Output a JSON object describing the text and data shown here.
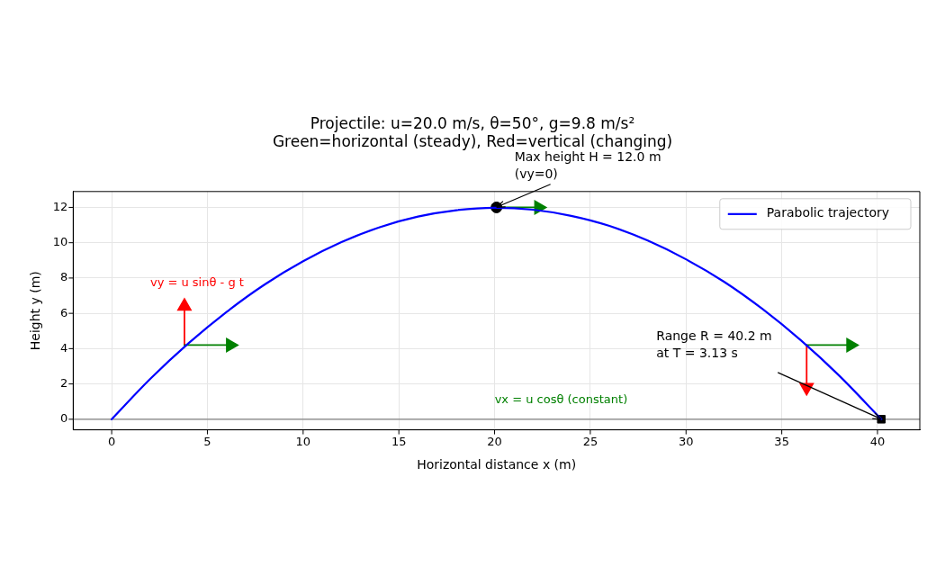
{
  "chart_data": {
    "type": "line",
    "title": "Projectile: u=20.0 m/s, θ=50°, g=9.8 m/s²\nGreen=horizontal (steady), Red=vertical (changing)",
    "xlabel": "Horizontal distance x (m)",
    "ylabel": "Height y (m)",
    "xlim": [
      -2.01,
      42.21
    ],
    "ylim": [
      -0.6,
      12.9
    ],
    "xticks": [
      0,
      5,
      10,
      15,
      20,
      25,
      30,
      35,
      40
    ],
    "yticks": [
      0,
      2,
      4,
      6,
      8,
      10,
      12
    ],
    "grid": true,
    "legend": "top right",
    "series": [
      {
        "name": "Parabolic trajectory",
        "color": "#0000ff",
        "marker": "none",
        "x": [
          0,
          2,
          4,
          6,
          8,
          10,
          12,
          14,
          16,
          18,
          20,
          22,
          24,
          26,
          28,
          30,
          32,
          34,
          36,
          38,
          40.2
        ],
        "values": [
          0,
          2.27,
          4.29,
          6.08,
          7.64,
          8.95,
          10.03,
          10.88,
          11.48,
          11.84,
          11.98,
          11.87,
          11.52,
          10.95,
          10.12,
          9.06,
          7.78,
          6.24,
          4.47,
          2.47,
          0
        ]
      },
      {
        "type": "scatter",
        "color": "#000000",
        "marker": "circle",
        "x": [
          20.1
        ],
        "values": [
          12.0
        ]
      },
      {
        "type": "scatter",
        "color": "#000000",
        "marker": "square",
        "x": [
          40.2
        ],
        "values": [
          0
        ]
      },
      {
        "type": "line",
        "color": "#008000",
        "marker": "triangle",
        "x": [
          3.8,
          6.2
        ],
        "values": [
          4.2,
          4.2
        ]
      },
      {
        "type": "line",
        "color": "#ff0000",
        "marker": "triangle",
        "x": [
          3.8,
          3.8
        ],
        "values": [
          4.2,
          6.4
        ]
      },
      {
        "type": "line",
        "color": "#008000",
        "marker": "triangle",
        "x": [
          20.1,
          22.3
        ],
        "values": [
          12.0,
          12.0
        ]
      },
      {
        "type": "line",
        "color": "#008000",
        "marker": "triangle",
        "x": [
          36.3,
          38.6
        ],
        "values": [
          4.2,
          4.2
        ]
      },
      {
        "type": "line",
        "color": "#ff0000",
        "marker": "triangle",
        "x": [
          36.3,
          36.3
        ],
        "values": [
          4.2,
          1.8
        ]
      }
    ],
    "ref_lines": [
      {
        "axis": "y",
        "value": 0,
        "color": "#808080"
      }
    ],
    "annotations": [
      {
        "text": "Max height H = 12.0 m\n(vy=0)",
        "x": 20.1,
        "y": 12.0
      },
      {
        "text": "Range R = 40.2 m\nat T = 3.13 s",
        "x": 40.2,
        "y": 0
      },
      "vy = u sinθ - g t",
      "vx = u cosθ (constant)"
    ]
  }
}
